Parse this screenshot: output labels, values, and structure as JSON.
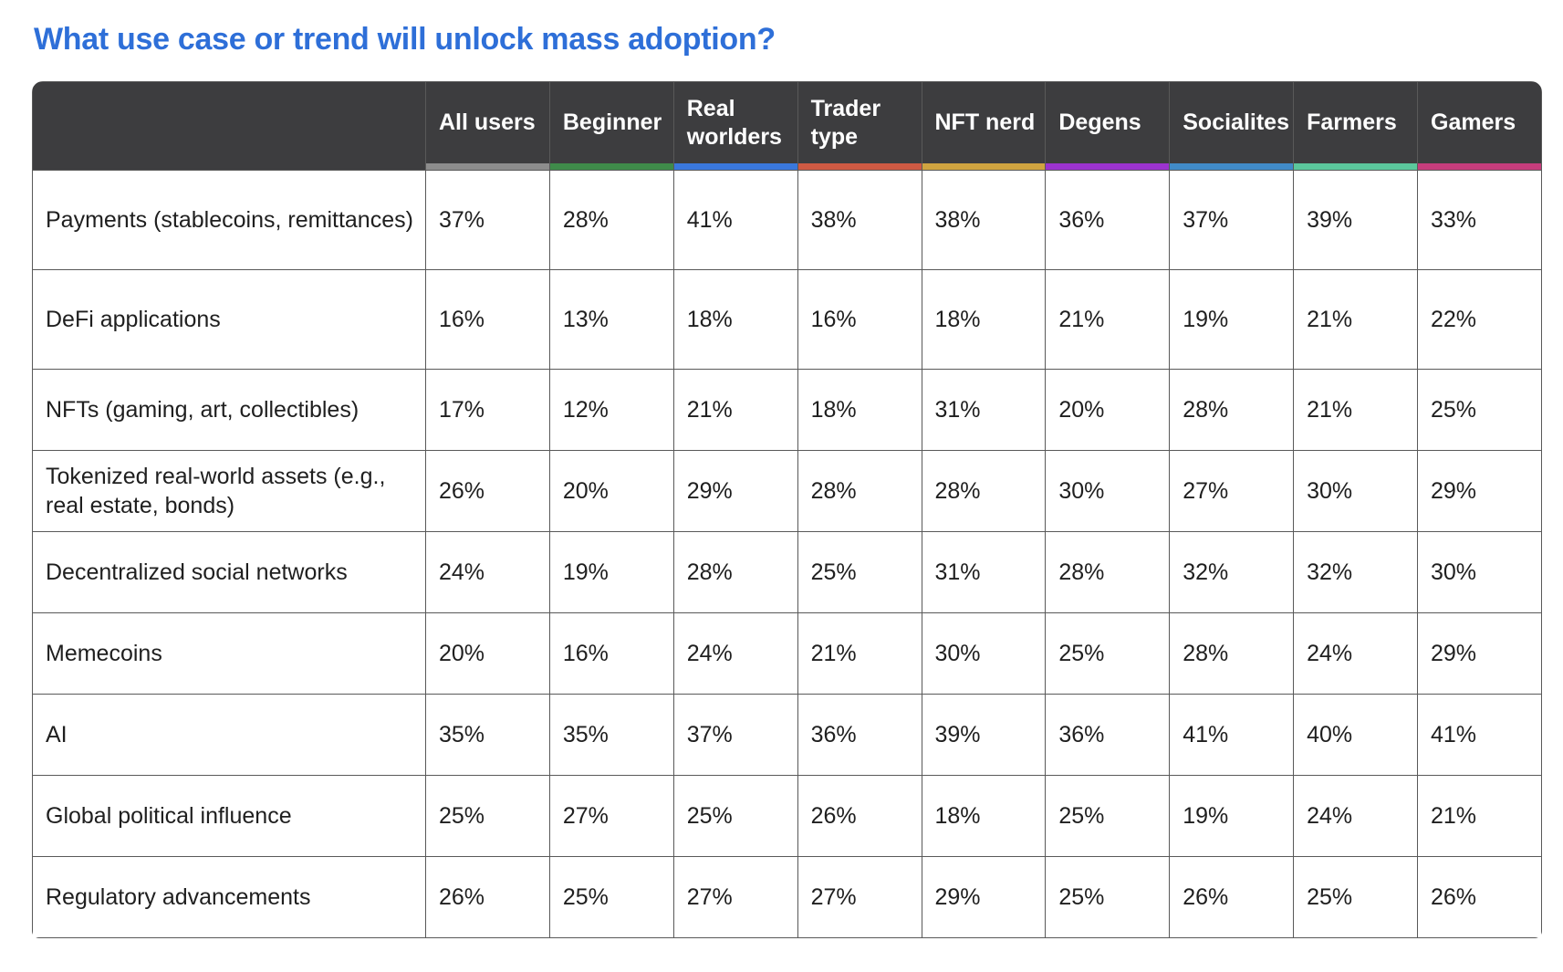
{
  "page": {
    "title": "What use case or trend will unlock mass adoption?",
    "title_color": "#2e6fd8",
    "header_bg_color": "#3d3d3f",
    "grid_line_color": "#595959"
  },
  "chart_data": {
    "type": "table",
    "title": "What use case or trend will unlock mass adoption?",
    "unit": "%",
    "columns": [
      {
        "label": "All users",
        "accent_color": "#8d8d8d"
      },
      {
        "label": "Beginner",
        "accent_color": "#3f8b4a"
      },
      {
        "label": "Real worlders",
        "accent_color": "#3a78dd"
      },
      {
        "label": "Trader type",
        "accent_color": "#cf5a43"
      },
      {
        "label": "NFT nerd",
        "accent_color": "#d0a440"
      },
      {
        "label": "Degens",
        "accent_color": "#9c33cf"
      },
      {
        "label": "Socialites",
        "accent_color": "#418bc8"
      },
      {
        "label": "Farmers",
        "accent_color": "#5bc79c"
      },
      {
        "label": "Gamers",
        "accent_color": "#c63d7c"
      }
    ],
    "rows": [
      {
        "label": "Payments (stablecoins, remittances)",
        "values": [
          37,
          28,
          41,
          38,
          38,
          36,
          37,
          39,
          33
        ]
      },
      {
        "label": "DeFi applications",
        "values": [
          16,
          13,
          18,
          16,
          18,
          21,
          19,
          21,
          22
        ]
      },
      {
        "label": "NFTs (gaming, art, collectibles)",
        "values": [
          17,
          12,
          21,
          18,
          31,
          20,
          28,
          21,
          25
        ]
      },
      {
        "label": "Tokenized real-world assets (e.g., real estate, bonds)",
        "values": [
          26,
          20,
          29,
          28,
          28,
          30,
          27,
          30,
          29
        ]
      },
      {
        "label": "Decentralized social networks",
        "values": [
          24,
          19,
          28,
          25,
          31,
          28,
          32,
          32,
          30
        ]
      },
      {
        "label": "Memecoins",
        "values": [
          20,
          16,
          24,
          21,
          30,
          25,
          28,
          24,
          29
        ]
      },
      {
        "label": "AI",
        "values": [
          35,
          35,
          37,
          36,
          39,
          36,
          41,
          40,
          41
        ]
      },
      {
        "label": "Global political influence",
        "values": [
          25,
          27,
          25,
          26,
          18,
          25,
          19,
          24,
          21
        ]
      },
      {
        "label": "Regulatory advancements",
        "values": [
          26,
          25,
          27,
          27,
          29,
          25,
          26,
          25,
          26
        ]
      }
    ]
  }
}
